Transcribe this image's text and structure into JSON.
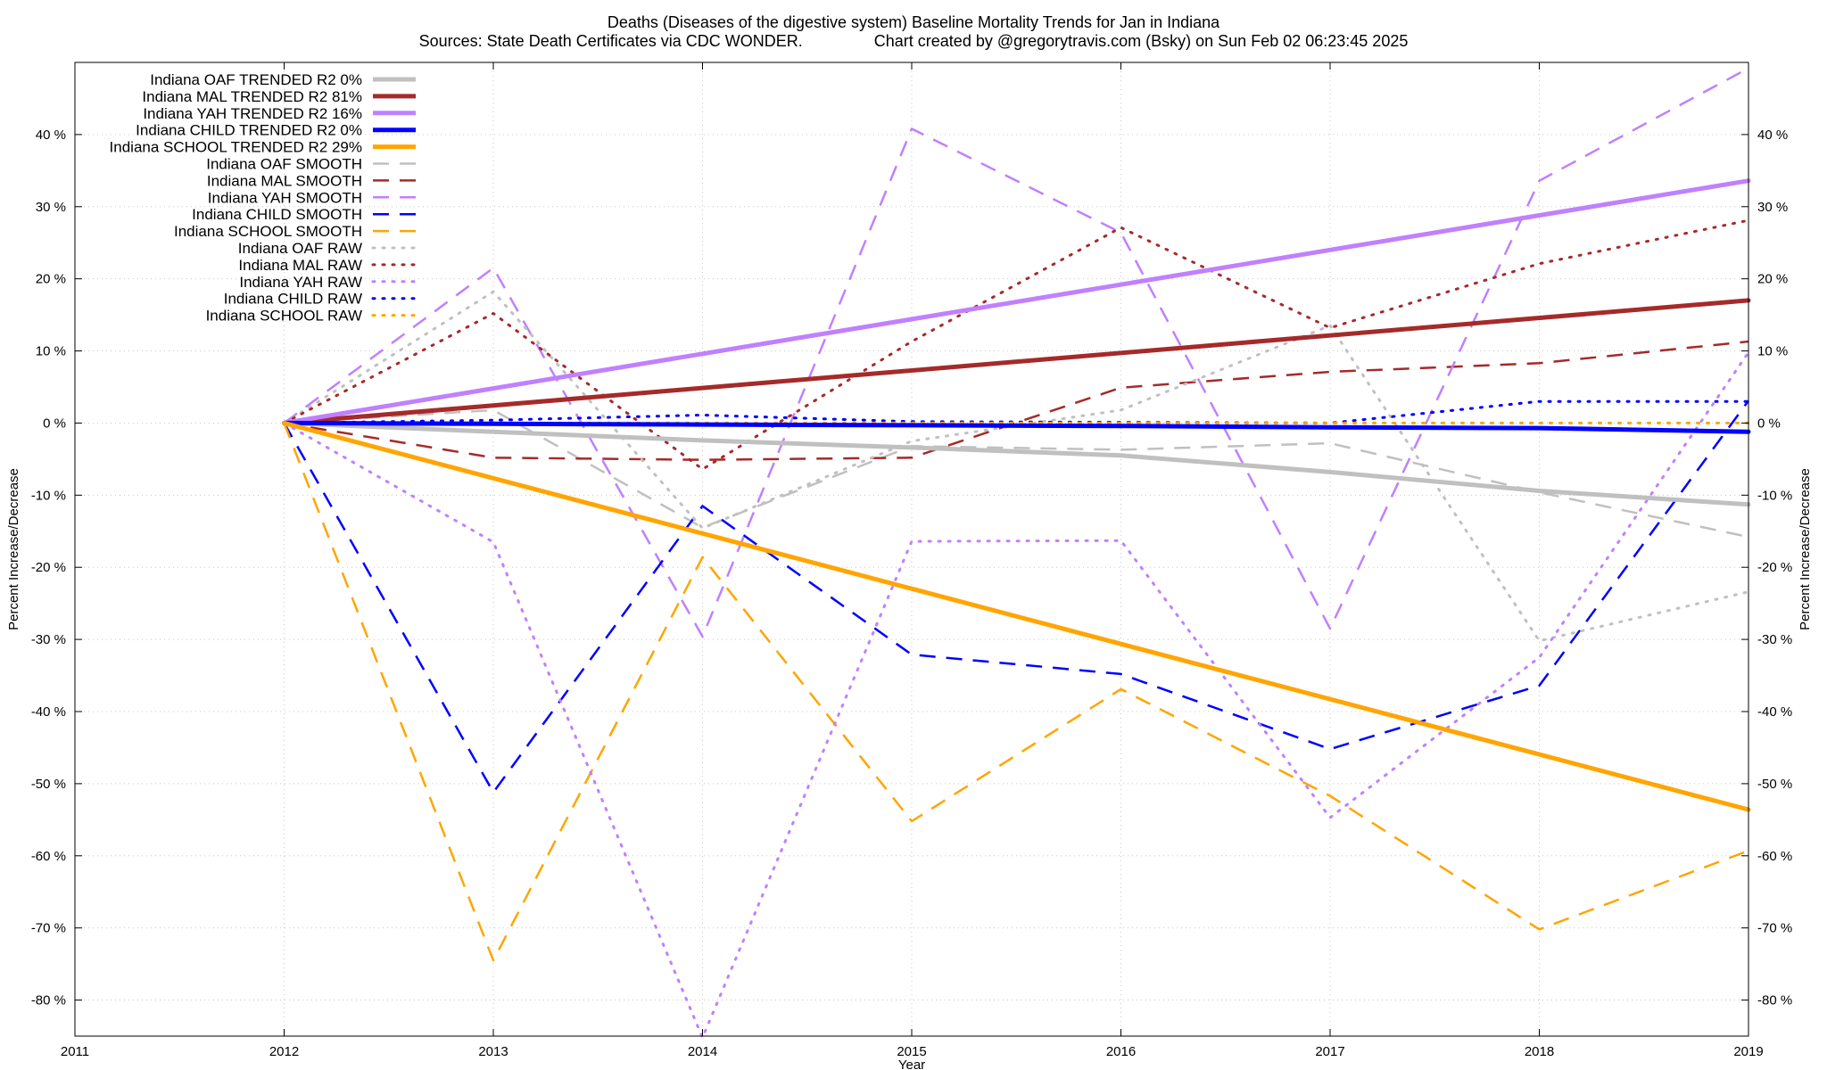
{
  "chart_data": {
    "type": "line",
    "title": "Deaths (Diseases of the digestive system)  Baseline Mortality Trends for Jan in Indiana",
    "subtitle": "Sources: State Death Certificates via CDC WONDER.                Chart created by @gregorytravis.com (Bsky) on Sun Feb 02 06:23:45 2025",
    "xlabel": "Year",
    "ylabel": "Percent Increase/Decrease",
    "y2label": "Percent Increase/Decrease",
    "xlim": [
      2011,
      2019
    ],
    "ylim": [
      -85,
      50
    ],
    "x_ticks": [
      2011,
      2012,
      2013,
      2014,
      2015,
      2016,
      2017,
      2018,
      2019
    ],
    "y_ticks": [
      40,
      30,
      20,
      10,
      0,
      -10,
      -20,
      -30,
      -40,
      -50,
      -60,
      -70,
      -80
    ],
    "y_tick_suffix": " %",
    "grid": true,
    "legend_position": "top-left",
    "colors": {
      "oaf": "#c0c0c0",
      "mal": "#a52a2a",
      "yah": "#c080ff",
      "child": "#0000ff",
      "school": "#ffa500"
    },
    "series": [
      {
        "name": "Indiana OAF TRENDED R2   0%",
        "style": "trended",
        "color": "#c0c0c0",
        "x": [
          2012,
          2013,
          2014,
          2015,
          2016,
          2017,
          2018,
          2019
        ],
        "y": [
          0,
          -1.2,
          -2.4,
          -3.4,
          -4.5,
          -6.8,
          -9.4,
          -11.3
        ]
      },
      {
        "name": "Indiana MAL TRENDED R2  81%",
        "style": "trended",
        "color": "#a52a2a",
        "x": [
          2012,
          2019
        ],
        "y": [
          0,
          17
        ]
      },
      {
        "name": "Indiana YAH TRENDED R2  16%",
        "style": "trended",
        "color": "#c080ff",
        "x": [
          2012,
          2019
        ],
        "y": [
          0,
          33.6
        ]
      },
      {
        "name": "Indiana CHILD TRENDED R2   0%",
        "style": "trended",
        "color": "#0000ff",
        "x": [
          2012,
          2013,
          2014,
          2015,
          2016,
          2017,
          2018,
          2019
        ],
        "y": [
          0,
          -0.1,
          -0.2,
          -0.3,
          -0.4,
          -0.6,
          -0.7,
          -1.2
        ]
      },
      {
        "name": "Indiana SCHOOL TRENDED R2  29%",
        "style": "trended",
        "color": "#ffa500",
        "x": [
          2012,
          2019
        ],
        "y": [
          0,
          -53.6
        ]
      },
      {
        "name": "Indiana OAF SMOOTH",
        "style": "smooth",
        "color": "#c0c0c0",
        "x": [
          2012,
          2013,
          2014,
          2015,
          2016,
          2017,
          2018,
          2019
        ],
        "y": [
          0,
          1.8,
          -14.5,
          -3.2,
          -3.7,
          -2.8,
          -9.6,
          -15.8
        ]
      },
      {
        "name": "Indiana MAL SMOOTH",
        "style": "smooth",
        "color": "#a52a2a",
        "x": [
          2012,
          2013,
          2014,
          2015,
          2016,
          2017,
          2018,
          2019
        ],
        "y": [
          0,
          -4.8,
          -5.1,
          -4.8,
          4.9,
          7.1,
          8.3,
          11.3
        ]
      },
      {
        "name": "Indiana YAH SMOOTH",
        "style": "smooth",
        "color": "#c080ff",
        "x": [
          2012,
          2013,
          2014,
          2015,
          2016,
          2017,
          2018,
          2019
        ],
        "y": [
          0,
          21.5,
          -29.6,
          40.8,
          26.4,
          -28.5,
          33.6,
          49.2
        ]
      },
      {
        "name": "Indiana CHILD SMOOTH",
        "style": "smooth",
        "color": "#0000ff",
        "x": [
          2012,
          2013,
          2014,
          2015,
          2016,
          2017,
          2018,
          2019
        ],
        "y": [
          0,
          -51.2,
          -11.5,
          -32.1,
          -34.8,
          -45.2,
          -36.4,
          3.1
        ]
      },
      {
        "name": "Indiana SCHOOL SMOOTH",
        "style": "smooth",
        "color": "#ffa500",
        "x": [
          2012,
          2013,
          2014,
          2015,
          2016,
          2017,
          2018,
          2019
        ],
        "y": [
          0,
          -74.5,
          -18.6,
          -55.2,
          -36.9,
          -51.7,
          -70.2,
          -59.3
        ]
      },
      {
        "name": "Indiana OAF RAW",
        "style": "raw",
        "color": "#c0c0c0",
        "x": [
          2012,
          2013,
          2014,
          2015,
          2016,
          2017,
          2018,
          2019
        ],
        "y": [
          0,
          18.2,
          -14.6,
          -2.5,
          1.8,
          13.5,
          -30.2,
          -23.4
        ]
      },
      {
        "name": "Indiana MAL RAW",
        "style": "raw",
        "color": "#a52a2a",
        "x": [
          2012,
          2013,
          2014,
          2015,
          2016,
          2017,
          2018,
          2019
        ],
        "y": [
          0,
          15.2,
          -6.4,
          11.3,
          27.1,
          13.2,
          22.1,
          28.1
        ]
      },
      {
        "name": "Indiana YAH RAW",
        "style": "raw",
        "color": "#c080ff",
        "x": [
          2012,
          2013,
          2014,
          2015,
          2016,
          2017,
          2018,
          2019
        ],
        "y": [
          0,
          -16.5,
          -85.2,
          -16.4,
          -16.3,
          -54.7,
          -32.5,
          9.8
        ]
      },
      {
        "name": "Indiana CHILD RAW",
        "style": "raw",
        "color": "#0000ff",
        "x": [
          2012,
          2013,
          2014,
          2015,
          2016,
          2017,
          2018,
          2019
        ],
        "y": [
          0,
          0.4,
          1.1,
          0.2,
          0.1,
          0,
          3.0,
          3.0
        ]
      },
      {
        "name": "Indiana SCHOOL RAW",
        "style": "raw",
        "color": "#ffa500",
        "x": [
          2012,
          2013,
          2014,
          2015,
          2016,
          2017,
          2018,
          2019
        ],
        "y": [
          0,
          0,
          0,
          0,
          0,
          0,
          0,
          0
        ]
      }
    ]
  }
}
